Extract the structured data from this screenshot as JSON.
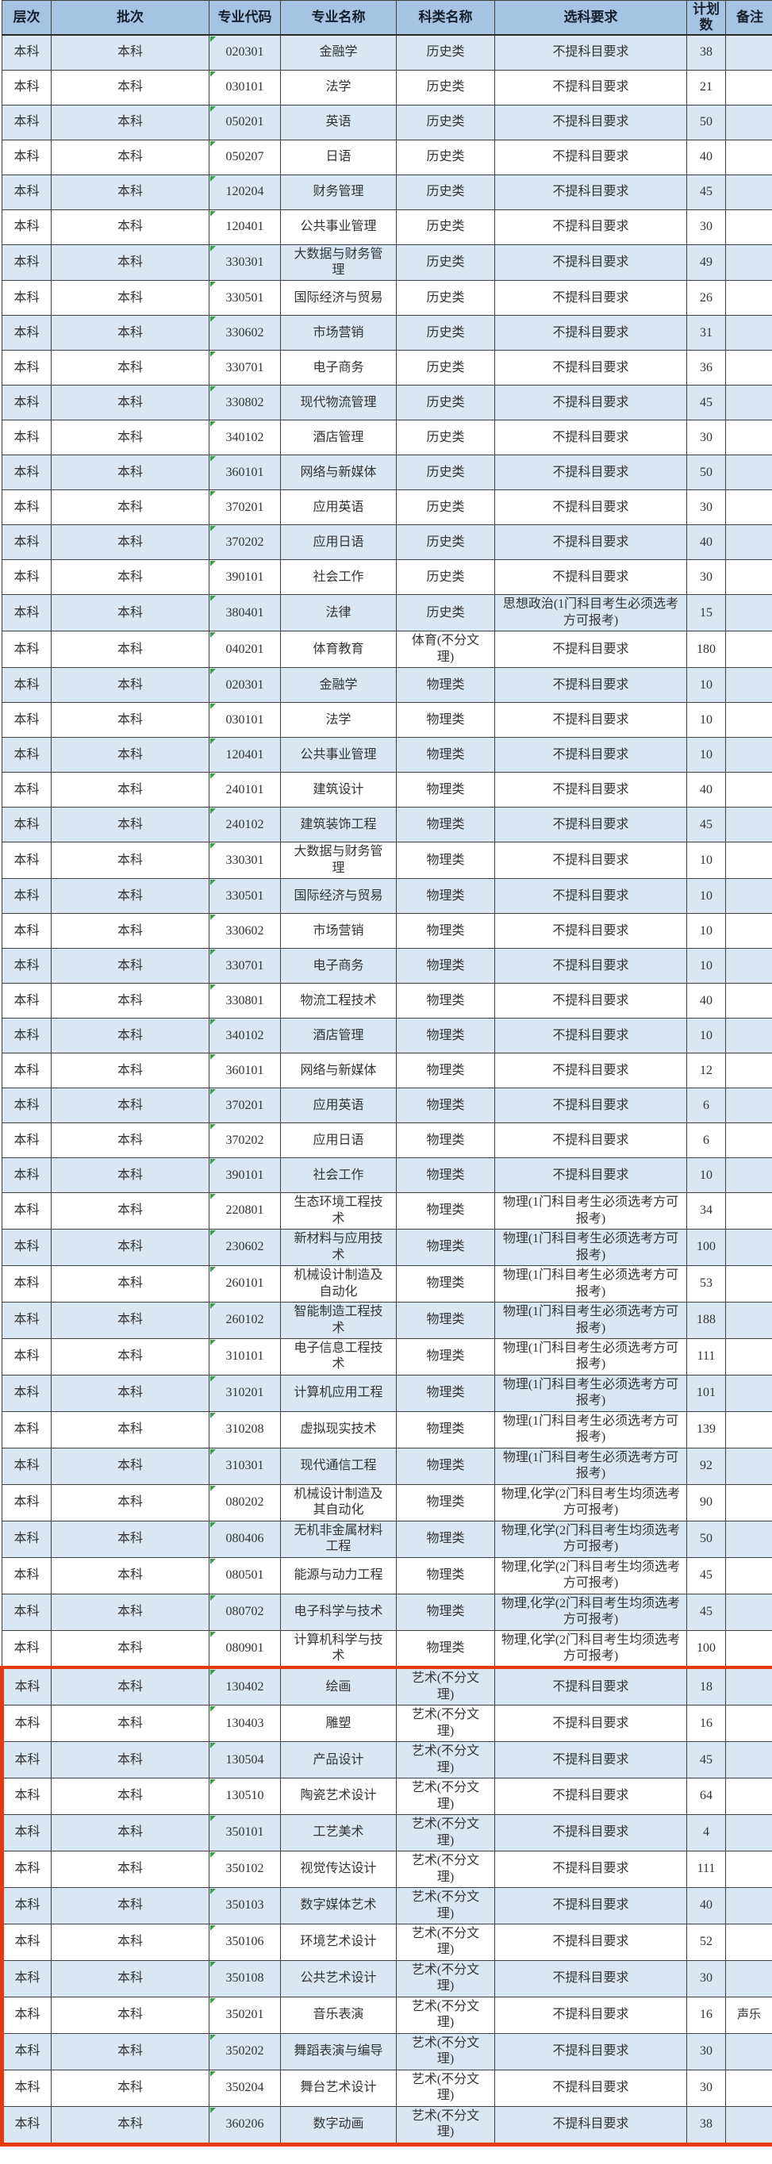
{
  "table": {
    "headers": [
      "层次",
      "批次",
      "专业代码",
      "专业名称",
      "科类名称",
      "选科要求",
      "计划数",
      "备注"
    ],
    "column_keys": [
      "level",
      "batch",
      "code",
      "major",
      "category",
      "requirement",
      "plan",
      "note"
    ],
    "rows": [
      [
        "本科",
        "本科",
        "020301",
        "金融学",
        "历史类",
        "不提科目要求",
        "38",
        ""
      ],
      [
        "本科",
        "本科",
        "030101",
        "法学",
        "历史类",
        "不提科目要求",
        "21",
        ""
      ],
      [
        "本科",
        "本科",
        "050201",
        "英语",
        "历史类",
        "不提科目要求",
        "50",
        ""
      ],
      [
        "本科",
        "本科",
        "050207",
        "日语",
        "历史类",
        "不提科目要求",
        "40",
        ""
      ],
      [
        "本科",
        "本科",
        "120204",
        "财务管理",
        "历史类",
        "不提科目要求",
        "45",
        ""
      ],
      [
        "本科",
        "本科",
        "120401",
        "公共事业管理",
        "历史类",
        "不提科目要求",
        "30",
        ""
      ],
      [
        "本科",
        "本科",
        "330301",
        "大数据与财务管理",
        "历史类",
        "不提科目要求",
        "49",
        ""
      ],
      [
        "本科",
        "本科",
        "330501",
        "国际经济与贸易",
        "历史类",
        "不提科目要求",
        "26",
        ""
      ],
      [
        "本科",
        "本科",
        "330602",
        "市场营销",
        "历史类",
        "不提科目要求",
        "31",
        ""
      ],
      [
        "本科",
        "本科",
        "330701",
        "电子商务",
        "历史类",
        "不提科目要求",
        "36",
        ""
      ],
      [
        "本科",
        "本科",
        "330802",
        "现代物流管理",
        "历史类",
        "不提科目要求",
        "45",
        ""
      ],
      [
        "本科",
        "本科",
        "340102",
        "酒店管理",
        "历史类",
        "不提科目要求",
        "30",
        ""
      ],
      [
        "本科",
        "本科",
        "360101",
        "网络与新媒体",
        "历史类",
        "不提科目要求",
        "50",
        ""
      ],
      [
        "本科",
        "本科",
        "370201",
        "应用英语",
        "历史类",
        "不提科目要求",
        "30",
        ""
      ],
      [
        "本科",
        "本科",
        "370202",
        "应用日语",
        "历史类",
        "不提科目要求",
        "40",
        ""
      ],
      [
        "本科",
        "本科",
        "390101",
        "社会工作",
        "历史类",
        "不提科目要求",
        "30",
        ""
      ],
      [
        "本科",
        "本科",
        "380401",
        "法律",
        "历史类",
        "思想政治(1门科目考生必须选考方可报考)",
        "15",
        ""
      ],
      [
        "本科",
        "本科",
        "040201",
        "体育教育",
        "体育(不分文理)",
        "不提科目要求",
        "180",
        ""
      ],
      [
        "本科",
        "本科",
        "020301",
        "金融学",
        "物理类",
        "不提科目要求",
        "10",
        ""
      ],
      [
        "本科",
        "本科",
        "030101",
        "法学",
        "物理类",
        "不提科目要求",
        "10",
        ""
      ],
      [
        "本科",
        "本科",
        "120401",
        "公共事业管理",
        "物理类",
        "不提科目要求",
        "10",
        ""
      ],
      [
        "本科",
        "本科",
        "240101",
        "建筑设计",
        "物理类",
        "不提科目要求",
        "40",
        ""
      ],
      [
        "本科",
        "本科",
        "240102",
        "建筑装饰工程",
        "物理类",
        "不提科目要求",
        "45",
        ""
      ],
      [
        "本科",
        "本科",
        "330301",
        "大数据与财务管理",
        "物理类",
        "不提科目要求",
        "10",
        ""
      ],
      [
        "本科",
        "本科",
        "330501",
        "国际经济与贸易",
        "物理类",
        "不提科目要求",
        "10",
        ""
      ],
      [
        "本科",
        "本科",
        "330602",
        "市场营销",
        "物理类",
        "不提科目要求",
        "10",
        ""
      ],
      [
        "本科",
        "本科",
        "330701",
        "电子商务",
        "物理类",
        "不提科目要求",
        "10",
        ""
      ],
      [
        "本科",
        "本科",
        "330801",
        "物流工程技术",
        "物理类",
        "不提科目要求",
        "40",
        ""
      ],
      [
        "本科",
        "本科",
        "340102",
        "酒店管理",
        "物理类",
        "不提科目要求",
        "10",
        ""
      ],
      [
        "本科",
        "本科",
        "360101",
        "网络与新媒体",
        "物理类",
        "不提科目要求",
        "12",
        ""
      ],
      [
        "本科",
        "本科",
        "370201",
        "应用英语",
        "物理类",
        "不提科目要求",
        "6",
        ""
      ],
      [
        "本科",
        "本科",
        "370202",
        "应用日语",
        "物理类",
        "不提科目要求",
        "6",
        ""
      ],
      [
        "本科",
        "本科",
        "390101",
        "社会工作",
        "物理类",
        "不提科目要求",
        "10",
        ""
      ],
      [
        "本科",
        "本科",
        "220801",
        "生态环境工程技术",
        "物理类",
        "物理(1门科目考生必须选考方可报考)",
        "34",
        ""
      ],
      [
        "本科",
        "本科",
        "230602",
        "新材料与应用技术",
        "物理类",
        "物理(1门科目考生必须选考方可报考)",
        "100",
        ""
      ],
      [
        "本科",
        "本科",
        "260101",
        "机械设计制造及自动化",
        "物理类",
        "物理(1门科目考生必须选考方可报考)",
        "53",
        ""
      ],
      [
        "本科",
        "本科",
        "260102",
        "智能制造工程技术",
        "物理类",
        "物理(1门科目考生必须选考方可报考)",
        "188",
        ""
      ],
      [
        "本科",
        "本科",
        "310101",
        "电子信息工程技术",
        "物理类",
        "物理(1门科目考生必须选考方可报考)",
        "111",
        ""
      ],
      [
        "本科",
        "本科",
        "310201",
        "计算机应用工程",
        "物理类",
        "物理(1门科目考生必须选考方可报考)",
        "101",
        ""
      ],
      [
        "本科",
        "本科",
        "310208",
        "虚拟现实技术",
        "物理类",
        "物理(1门科目考生必须选考方可报考)",
        "139",
        ""
      ],
      [
        "本科",
        "本科",
        "310301",
        "现代通信工程",
        "物理类",
        "物理(1门科目考生必须选考方可报考)",
        "92",
        ""
      ],
      [
        "本科",
        "本科",
        "080202",
        "机械设计制造及其自动化",
        "物理类",
        "物理,化学(2门科目考生均须选考方可报考)",
        "90",
        ""
      ],
      [
        "本科",
        "本科",
        "080406",
        "无机非金属材料工程",
        "物理类",
        "物理,化学(2门科目考生均须选考方可报考)",
        "50",
        ""
      ],
      [
        "本科",
        "本科",
        "080501",
        "能源与动力工程",
        "物理类",
        "物理,化学(2门科目考生均须选考方可报考)",
        "45",
        ""
      ],
      [
        "本科",
        "本科",
        "080702",
        "电子科学与技术",
        "物理类",
        "物理,化学(2门科目考生均须选考方可报考)",
        "45",
        ""
      ],
      [
        "本科",
        "本科",
        "080901",
        "计算机科学与技术",
        "物理类",
        "物理,化学(2门科目考生均须选考方可报考)",
        "100",
        ""
      ],
      [
        "本科",
        "本科",
        "130402",
        "绘画",
        "艺术(不分文理)",
        "不提科目要求",
        "18",
        ""
      ],
      [
        "本科",
        "本科",
        "130403",
        "雕塑",
        "艺术(不分文理)",
        "不提科目要求",
        "16",
        ""
      ],
      [
        "本科",
        "本科",
        "130504",
        "产品设计",
        "艺术(不分文理)",
        "不提科目要求",
        "45",
        ""
      ],
      [
        "本科",
        "本科",
        "130510",
        "陶瓷艺术设计",
        "艺术(不分文理)",
        "不提科目要求",
        "64",
        ""
      ],
      [
        "本科",
        "本科",
        "350101",
        "工艺美术",
        "艺术(不分文理)",
        "不提科目要求",
        "4",
        ""
      ],
      [
        "本科",
        "本科",
        "350102",
        "视觉传达设计",
        "艺术(不分文理)",
        "不提科目要求",
        "111",
        ""
      ],
      [
        "本科",
        "本科",
        "350103",
        "数字媒体艺术",
        "艺术(不分文理)",
        "不提科目要求",
        "40",
        ""
      ],
      [
        "本科",
        "本科",
        "350106",
        "环境艺术设计",
        "艺术(不分文理)",
        "不提科目要求",
        "52",
        ""
      ],
      [
        "本科",
        "本科",
        "350108",
        "公共艺术设计",
        "艺术(不分文理)",
        "不提科目要求",
        "30",
        ""
      ],
      [
        "本科",
        "本科",
        "350201",
        "音乐表演",
        "艺术(不分文理)",
        "不提科目要求",
        "16",
        "声乐"
      ],
      [
        "本科",
        "本科",
        "350202",
        "舞蹈表演与编导",
        "艺术(不分文理)",
        "不提科目要求",
        "30",
        ""
      ],
      [
        "本科",
        "本科",
        "350204",
        "舞台艺术设计",
        "艺术(不分文理)",
        "不提科目要求",
        "30",
        ""
      ],
      [
        "本科",
        "本科",
        "360206",
        "数字动画",
        "艺术(不分文理)",
        "不提科目要求",
        "38",
        ""
      ]
    ]
  },
  "highlight": {
    "from_index": 46,
    "to_index": 58,
    "from_code": "130402",
    "to_code": "360206",
    "color": "#e8380d"
  },
  "colors": {
    "header_bg": "#a6c3e2",
    "row_alt_bg": "#d9e7f4",
    "row_bg": "#ffffff",
    "grid": "#3f3f3f",
    "text": "#333333",
    "highlight_border": "#e8380d",
    "code_marker_green": "#3aa04a"
  },
  "icons": {
    "code_cell_marker": "green-corner-triangle"
  }
}
